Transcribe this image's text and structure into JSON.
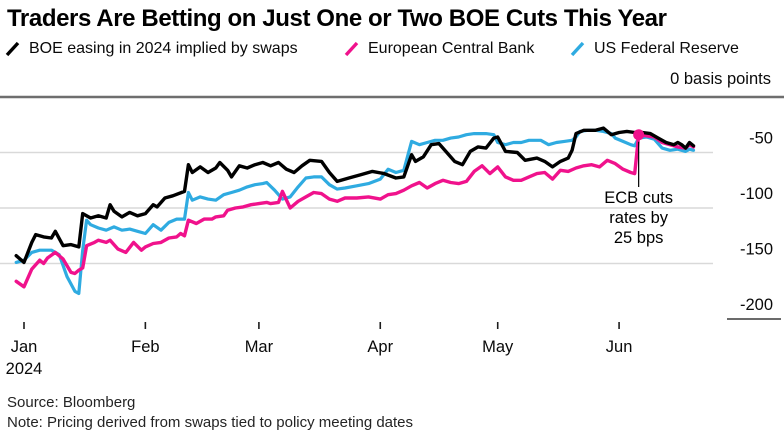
{
  "title": "Traders Are Betting on Just One or Two BOE Cuts This Year",
  "legend": [
    {
      "id": "boe",
      "label": "BOE easing in 2024 implied by swaps",
      "color": "#000000"
    },
    {
      "id": "ecb",
      "label": "European Central Bank",
      "color": "#F0128C"
    },
    {
      "id": "fed",
      "label": "US Federal Reserve",
      "color": "#2FABE1"
    }
  ],
  "axis": {
    "top_label": "0 basis points",
    "y_ticks": [
      {
        "label": "-50",
        "value": -50
      },
      {
        "label": "-100",
        "value": -100
      },
      {
        "label": "-150",
        "value": -150
      },
      {
        "label": "-200",
        "value": -200
      }
    ],
    "x_ticks": [
      {
        "label": "Jan",
        "day": 0
      },
      {
        "label": "Feb",
        "day": 31
      },
      {
        "label": "Mar",
        "day": 60
      },
      {
        "label": "Apr",
        "day": 91
      },
      {
        "label": "May",
        "day": 121
      },
      {
        "label": "Jun",
        "day": 152
      }
    ],
    "x_year": "2024"
  },
  "annotation": {
    "lines": [
      "ECB cuts",
      "rates by",
      "25 bps"
    ],
    "day": 157,
    "value": -34
  },
  "footer": {
    "source": "Source: Bloomberg",
    "note": "Note: Pricing derived from swaps tied to policy meeting dates"
  },
  "colors": {
    "grid": "#d9d9d9",
    "zero_line": "#6e6e6e",
    "tick": "#1c1c1c",
    "axis_text": "#0a0a0a",
    "annotation_text": "#000000"
  },
  "chart_data": {
    "type": "line",
    "title": "Traders Are Betting on Just One or Two BOE Cuts This Year",
    "x_unit": "days since Jan 1 2024",
    "ylabel": "basis points",
    "ylim": [
      -200,
      0
    ],
    "xlim_days": [
      -3,
      173
    ],
    "grid": "horizontal",
    "legend_position": "top",
    "series": [
      {
        "id": "boe",
        "name": "BOE easing in 2024 implied by swaps",
        "points": [
          [
            -2,
            -143
          ],
          [
            0,
            -149
          ],
          [
            2,
            -131
          ],
          [
            3,
            -124
          ],
          [
            5,
            -126
          ],
          [
            7,
            -127
          ],
          [
            8,
            -121
          ],
          [
            10,
            -134
          ],
          [
            12,
            -133
          ],
          [
            14,
            -135
          ],
          [
            15,
            -105
          ],
          [
            17,
            -109
          ],
          [
            19,
            -107
          ],
          [
            21,
            -109
          ],
          [
            22,
            -97
          ],
          [
            23,
            -103
          ],
          [
            25,
            -108
          ],
          [
            27,
            -104
          ],
          [
            29,
            -107
          ],
          [
            31,
            -105
          ],
          [
            33,
            -97
          ],
          [
            34,
            -99
          ],
          [
            36,
            -91
          ],
          [
            38,
            -89
          ],
          [
            41,
            -85
          ],
          [
            42,
            -61
          ],
          [
            43,
            -68
          ],
          [
            45,
            -63
          ],
          [
            47,
            -68
          ],
          [
            49,
            -64
          ],
          [
            50,
            -59
          ],
          [
            52,
            -66
          ],
          [
            53,
            -72
          ],
          [
            55,
            -62
          ],
          [
            57,
            -64
          ],
          [
            59,
            -61
          ],
          [
            61,
            -59
          ],
          [
            63,
            -62
          ],
          [
            65,
            -59
          ],
          [
            67,
            -65
          ],
          [
            69,
            -68
          ],
          [
            71,
            -62
          ],
          [
            73,
            -57
          ],
          [
            76,
            -58
          ],
          [
            78,
            -68
          ],
          [
            80,
            -76
          ],
          [
            83,
            -73
          ],
          [
            86,
            -70
          ],
          [
            89,
            -67
          ],
          [
            92,
            -69
          ],
          [
            95,
            -73
          ],
          [
            97,
            -72
          ],
          [
            99,
            -52
          ],
          [
            100,
            -58
          ],
          [
            102,
            -54
          ],
          [
            104,
            -43
          ],
          [
            106,
            -42
          ],
          [
            108,
            -50
          ],
          [
            110,
            -58
          ],
          [
            112,
            -61
          ],
          [
            114,
            -49
          ],
          [
            116,
            -45
          ],
          [
            118,
            -46
          ],
          [
            120,
            -37
          ],
          [
            121,
            -36
          ],
          [
            123,
            -49
          ],
          [
            126,
            -50
          ],
          [
            128,
            -57
          ],
          [
            131,
            -55
          ],
          [
            133,
            -58
          ],
          [
            135,
            -63
          ],
          [
            137,
            -58
          ],
          [
            139,
            -55
          ],
          [
            140,
            -48
          ],
          [
            141,
            -33
          ],
          [
            143,
            -30
          ],
          [
            146,
            -30
          ],
          [
            148,
            -28
          ],
          [
            150,
            -34
          ],
          [
            152,
            -32
          ],
          [
            154,
            -31
          ],
          [
            156,
            -32
          ],
          [
            158,
            -32
          ],
          [
            160,
            -33
          ],
          [
            162,
            -37
          ],
          [
            164,
            -41
          ],
          [
            166,
            -43
          ],
          [
            167,
            -41
          ],
          [
            168,
            -43
          ],
          [
            169,
            -46
          ],
          [
            170,
            -41
          ],
          [
            171,
            -44
          ]
        ]
      },
      {
        "id": "ecb",
        "name": "European Central Bank",
        "points": [
          [
            -2,
            -166
          ],
          [
            0,
            -171
          ],
          [
            2,
            -155
          ],
          [
            4,
            -147
          ],
          [
            5,
            -150
          ],
          [
            6,
            -145
          ],
          [
            8,
            -140
          ],
          [
            10,
            -146
          ],
          [
            12,
            -158
          ],
          [
            13,
            -159
          ],
          [
            14,
            -156
          ],
          [
            15,
            -154
          ],
          [
            16,
            -134
          ],
          [
            18,
            -131
          ],
          [
            19,
            -129
          ],
          [
            21,
            -131
          ],
          [
            22,
            -129
          ],
          [
            24,
            -137
          ],
          [
            26,
            -140
          ],
          [
            28,
            -131
          ],
          [
            30,
            -138
          ],
          [
            31,
            -135
          ],
          [
            33,
            -132
          ],
          [
            35,
            -131
          ],
          [
            37,
            -127
          ],
          [
            39,
            -126
          ],
          [
            40,
            -123
          ],
          [
            41,
            -125
          ],
          [
            42,
            -111
          ],
          [
            44,
            -114
          ],
          [
            46,
            -110
          ],
          [
            48,
            -110
          ],
          [
            49,
            -108
          ],
          [
            51,
            -107
          ],
          [
            52,
            -102
          ],
          [
            54,
            -100
          ],
          [
            56,
            -99
          ],
          [
            58,
            -97
          ],
          [
            60,
            -96
          ],
          [
            62,
            -95
          ],
          [
            63,
            -96
          ],
          [
            65,
            -95
          ],
          [
            66,
            -85
          ],
          [
            68,
            -100
          ],
          [
            70,
            -94
          ],
          [
            72,
            -90
          ],
          [
            74,
            -86
          ],
          [
            76,
            -87
          ],
          [
            78,
            -92
          ],
          [
            80,
            -94
          ],
          [
            82,
            -91
          ],
          [
            85,
            -91
          ],
          [
            88,
            -90
          ],
          [
            91,
            -92
          ],
          [
            93,
            -88
          ],
          [
            95,
            -87
          ],
          [
            97,
            -84
          ],
          [
            99,
            -80
          ],
          [
            101,
            -77
          ],
          [
            103,
            -82
          ],
          [
            105,
            -78
          ],
          [
            107,
            -75
          ],
          [
            109,
            -77
          ],
          [
            111,
            -78
          ],
          [
            113,
            -76
          ],
          [
            115,
            -67
          ],
          [
            117,
            -62
          ],
          [
            119,
            -69
          ],
          [
            121,
            -63
          ],
          [
            123,
            -72
          ],
          [
            125,
            -75
          ],
          [
            127,
            -75
          ],
          [
            129,
            -72
          ],
          [
            131,
            -69
          ],
          [
            133,
            -68
          ],
          [
            135,
            -74
          ],
          [
            137,
            -66
          ],
          [
            139,
            -67
          ],
          [
            141,
            -64
          ],
          [
            143,
            -62
          ],
          [
            145,
            -61
          ],
          [
            147,
            -63
          ],
          [
            149,
            -57
          ],
          [
            151,
            -60
          ],
          [
            153,
            -65
          ],
          [
            155,
            -68
          ],
          [
            156,
            -69
          ],
          [
            157,
            -34
          ],
          [
            159,
            -35
          ],
          [
            161,
            -36
          ],
          [
            163,
            -41
          ],
          [
            165,
            -43
          ],
          [
            167,
            -45
          ],
          [
            169,
            -46
          ],
          [
            170,
            -43
          ],
          [
            171,
            -45
          ]
        ]
      },
      {
        "id": "fed",
        "name": "US Federal Reserve",
        "points": [
          [
            -2,
            -149
          ],
          [
            0,
            -147
          ],
          [
            2,
            -140
          ],
          [
            4,
            -138
          ],
          [
            7,
            -138
          ],
          [
            9,
            -142
          ],
          [
            11,
            -162
          ],
          [
            13,
            -175
          ],
          [
            14,
            -177
          ],
          [
            15,
            -138
          ],
          [
            16,
            -111
          ],
          [
            17,
            -115
          ],
          [
            19,
            -118
          ],
          [
            21,
            -120
          ],
          [
            23,
            -117
          ],
          [
            25,
            -120
          ],
          [
            27,
            -119
          ],
          [
            29,
            -121
          ],
          [
            31,
            -123
          ],
          [
            33,
            -115
          ],
          [
            35,
            -120
          ],
          [
            37,
            -113
          ],
          [
            39,
            -110
          ],
          [
            41,
            -110
          ],
          [
            42,
            -86
          ],
          [
            43,
            -93
          ],
          [
            45,
            -90
          ],
          [
            47,
            -92
          ],
          [
            49,
            -93
          ],
          [
            51,
            -88
          ],
          [
            53,
            -86
          ],
          [
            55,
            -84
          ],
          [
            57,
            -81
          ],
          [
            59,
            -79
          ],
          [
            61,
            -78
          ],
          [
            62,
            -77
          ],
          [
            64,
            -84
          ],
          [
            66,
            -92
          ],
          [
            68,
            -90
          ],
          [
            70,
            -81
          ],
          [
            72,
            -73
          ],
          [
            74,
            -72
          ],
          [
            76,
            -72
          ],
          [
            78,
            -79
          ],
          [
            80,
            -83
          ],
          [
            82,
            -82
          ],
          [
            85,
            -80
          ],
          [
            88,
            -78
          ],
          [
            91,
            -74
          ],
          [
            93,
            -65
          ],
          [
            95,
            -68
          ],
          [
            97,
            -66
          ],
          [
            99,
            -40
          ],
          [
            101,
            -43
          ],
          [
            103,
            -41
          ],
          [
            105,
            -39
          ],
          [
            107,
            -39
          ],
          [
            109,
            -37
          ],
          [
            111,
            -36
          ],
          [
            113,
            -34
          ],
          [
            115,
            -33
          ],
          [
            118,
            -33
          ],
          [
            120,
            -34
          ],
          [
            121,
            -41
          ],
          [
            123,
            -43
          ],
          [
            125,
            -41
          ],
          [
            127,
            -41
          ],
          [
            129,
            -39
          ],
          [
            132,
            -39
          ],
          [
            134,
            -43
          ],
          [
            136,
            -41
          ],
          [
            138,
            -40
          ],
          [
            140,
            -39
          ],
          [
            141,
            -36
          ],
          [
            142,
            -31
          ],
          [
            144,
            -30
          ],
          [
            146,
            -30
          ],
          [
            148,
            -31
          ],
          [
            150,
            -33
          ],
          [
            151,
            -37
          ],
          [
            153,
            -40
          ],
          [
            155,
            -43
          ],
          [
            156,
            -44
          ],
          [
            157,
            -37
          ],
          [
            159,
            -36
          ],
          [
            161,
            -38
          ],
          [
            163,
            -46
          ],
          [
            165,
            -48
          ],
          [
            167,
            -47
          ],
          [
            169,
            -49
          ],
          [
            170,
            -47
          ],
          [
            171,
            -48
          ]
        ]
      }
    ],
    "annotations": [
      {
        "text": "ECB cuts rates by 25 bps",
        "day": 157,
        "value": -34,
        "series": "ecb"
      }
    ]
  }
}
